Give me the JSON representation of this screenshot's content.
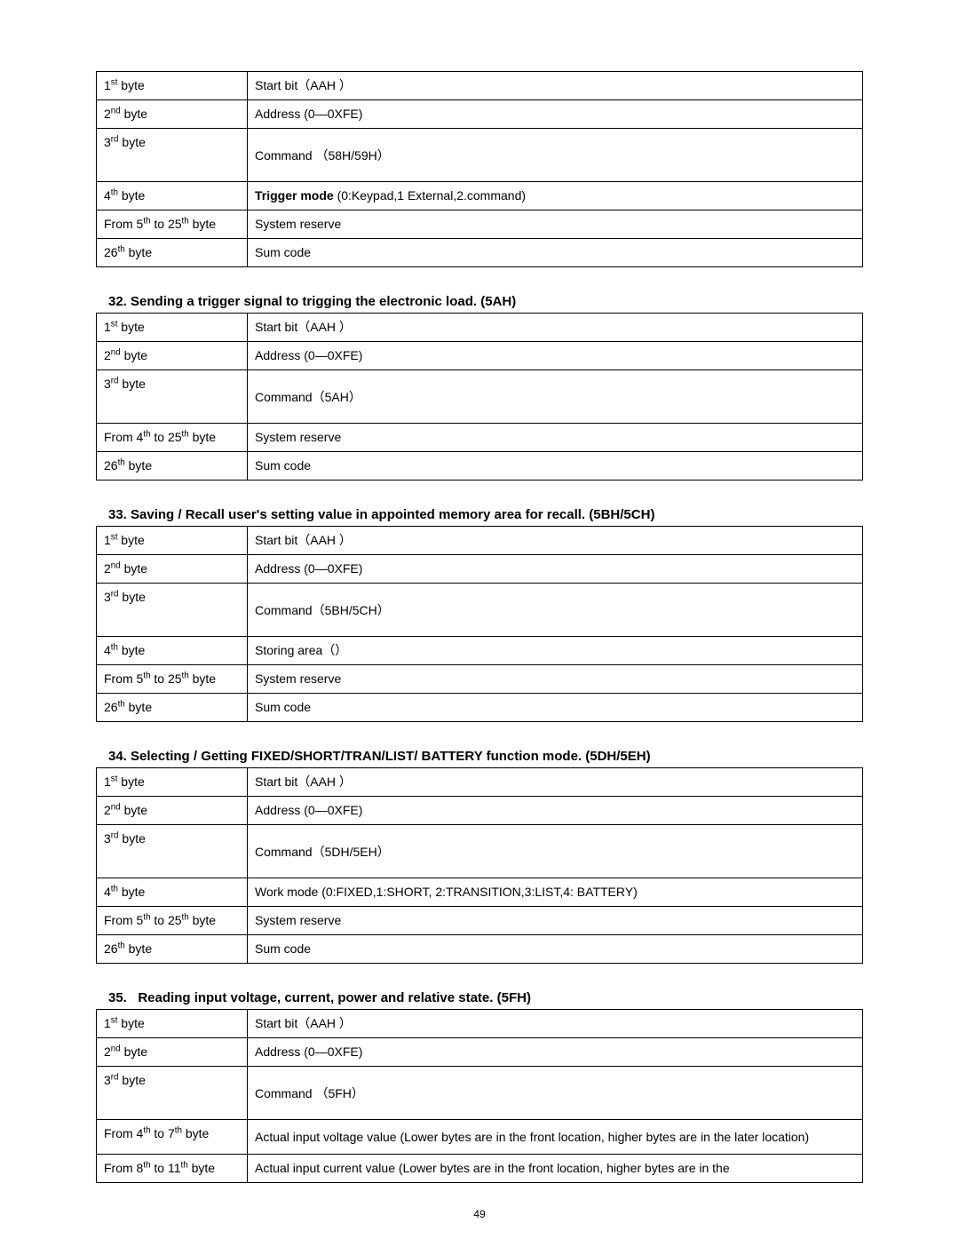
{
  "pageNumber": "49",
  "tables": [
    {
      "heading_before": null,
      "rows": [
        {
          "c1_num": "1",
          "c1_sup": "st",
          "c1_rest": " byte",
          "c2_html": "Start bit（AAH  ）"
        },
        {
          "c1_num": "2",
          "c1_sup": "nd",
          "c1_rest": " byte",
          "c2_html": "Address (0—0XFE)"
        },
        {
          "c1_num": "3",
          "c1_sup": "rd",
          "c1_rest": " byte",
          "c2_html": "Command  （58H/59H）",
          "tall": true,
          "c2_pad": "\n"
        },
        {
          "c1_num": "4",
          "c1_sup": "th",
          "c1_rest": " byte",
          "c2_bold": "Trigger mode ",
          "c2_html": "(0:Keypad,1 External,2.command)"
        },
        {
          "c1_raw_parts": [
            [
              "From 5",
              "th"
            ],
            [
              " to 25",
              "th"
            ],
            [
              " byte",
              ""
            ]
          ],
          "c2_html": "System reserve"
        },
        {
          "c1_num": "26",
          "c1_sup": "th",
          "c1_rest": " byte",
          "c2_html": "Sum code"
        }
      ]
    },
    {
      "heading_before": "32. Sending a trigger signal to trigging the electronic load. (5AH)",
      "rows": [
        {
          "c1_num": "1",
          "c1_sup": "st",
          "c1_rest": " byte",
          "c2_html": "Start bit（AAH  ）"
        },
        {
          "c1_num": "2",
          "c1_sup": "nd",
          "c1_rest": " byte",
          "c2_html": "Address (0—0XFE)"
        },
        {
          "c1_num": "3",
          "c1_sup": "rd",
          "c1_rest": " byte",
          "c2_html": "Command（5AH）",
          "tall": true,
          "c2_pad": "\n"
        },
        {
          "c1_raw_parts": [
            [
              "From 4",
              "th"
            ],
            [
              " to 25",
              "th"
            ],
            [
              " byte",
              ""
            ]
          ],
          "c2_html": "System reserve"
        },
        {
          "c1_num": "26",
          "c1_sup": "th",
          "c1_rest": " byte",
          "c2_html": "Sum code"
        }
      ]
    },
    {
      "heading_before": "33. Saving / Recall user's setting value in appointed memory area for recall. (5BH/5CH)",
      "rows": [
        {
          "c1_num": "1",
          "c1_sup": "st",
          "c1_rest": " byte",
          "c2_html": "Start bit（AAH  ）"
        },
        {
          "c1_num": "2",
          "c1_sup": "nd",
          "c1_rest": " byte",
          "c2_html": "Address (0—0XFE)"
        },
        {
          "c1_num": "3",
          "c1_sup": "rd",
          "c1_rest": " byte",
          "c2_html": "Command（5BH/5CH）",
          "tall": true,
          "c2_pad": "\n"
        },
        {
          "c1_num": "4",
          "c1_sup": "th",
          "c1_rest": " byte",
          "c2_html": "Storing area（）"
        },
        {
          "c1_raw_parts": [
            [
              "From 5",
              "th"
            ],
            [
              " to 25",
              "th"
            ],
            [
              " byte",
              ""
            ]
          ],
          "c2_html": "System reserve"
        },
        {
          "c1_num": "26",
          "c1_sup": "th",
          "c1_rest": " byte",
          "c2_html": "Sum code"
        }
      ]
    },
    {
      "heading_before": "34. Selecting / Getting FIXED/SHORT/TRAN/LIST/ BATTERY function mode. (5DH/5EH)",
      "rows": [
        {
          "c1_num": "1",
          "c1_sup": "st",
          "c1_rest": " byte",
          "c2_html": "Start bit（AAH  ）"
        },
        {
          "c1_num": "2",
          "c1_sup": "nd",
          "c1_rest": " byte",
          "c2_html": "Address (0—0XFE)"
        },
        {
          "c1_num": "3",
          "c1_sup": "rd",
          "c1_rest": " byte",
          "c2_html": "Command（5DH/5EH）",
          "tall": true,
          "c2_pad": "\n"
        },
        {
          "c1_num": "4",
          "c1_sup": "th",
          "c1_rest": " byte",
          "c2_html": "Work mode (0:FIXED,1:SHORT, 2:TRANSITION,3:LIST,4: BATTERY)"
        },
        {
          "c1_raw_parts": [
            [
              "From 5",
              "th"
            ],
            [
              " to 25",
              "th"
            ],
            [
              " byte",
              ""
            ]
          ],
          "c2_html": "System reserve"
        },
        {
          "c1_num": "26",
          "c1_sup": "th",
          "c1_rest": " byte",
          "c2_html": "Sum code"
        }
      ]
    },
    {
      "heading_before": "35.   Reading input voltage, current, power and relative state. (5FH)",
      "heading_pre": true,
      "rows": [
        {
          "c1_num": "1",
          "c1_sup": "st",
          "c1_rest": " byte",
          "c2_html": "Start bit（AAH  ）"
        },
        {
          "c1_num": "2",
          "c1_sup": "nd",
          "c1_rest": " byte",
          "c2_html": "Address (0—0XFE)"
        },
        {
          "c1_num": "3",
          "c1_sup": "rd",
          "c1_rest": " byte",
          "c2_html": "Command  （5FH）",
          "tall": true,
          "c2_pad": "\n"
        },
        {
          "c1_raw_parts": [
            [
              "From 4",
              "th"
            ],
            [
              " to 7",
              "th"
            ],
            [
              " byte",
              ""
            ]
          ],
          "c2_html": "Actual input voltage value (Lower bytes are in the front location, higher bytes are in the later location)",
          "c2_multiline": true
        },
        {
          "c1_raw_parts": [
            [
              "From 8",
              "th"
            ],
            [
              " to 11",
              "th"
            ],
            [
              " byte",
              ""
            ]
          ],
          "c2_html": "Actual input current value (Lower bytes are in the front location, higher bytes are in the",
          "no_bottom": true
        }
      ]
    }
  ]
}
